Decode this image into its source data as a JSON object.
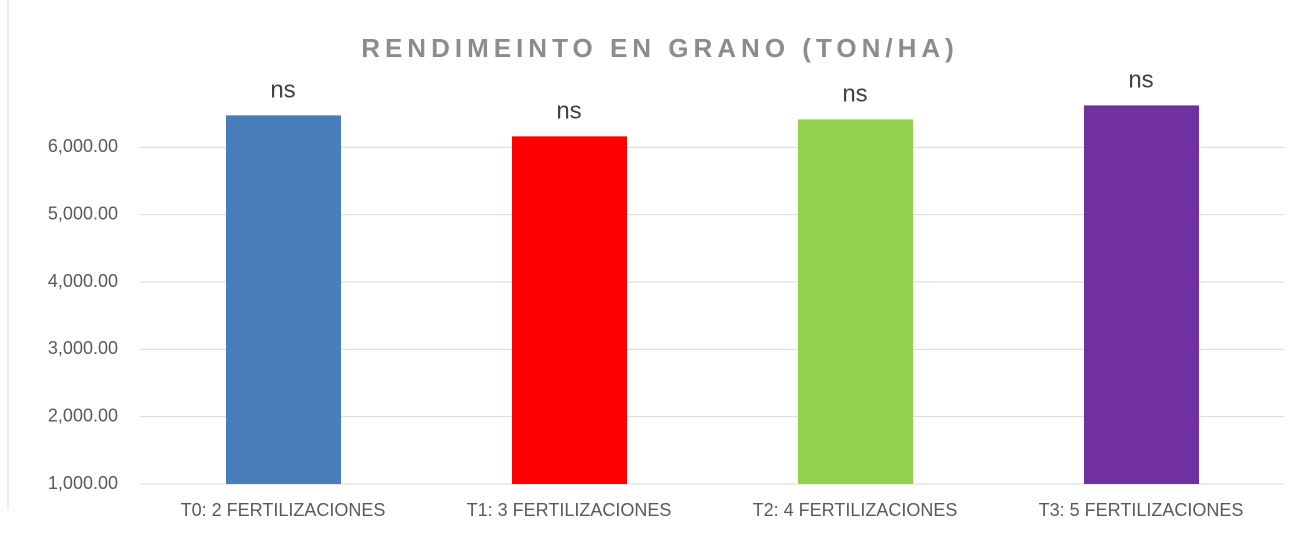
{
  "chart_data": {
    "type": "bar",
    "title": "RENDIMEINTO EN GRANO (TON/HA)",
    "categories": [
      "T0: 2 FERTILIZACIONES",
      "T1: 3 FERTILIZACIONES",
      "T2: 4 FERTILIZACIONES",
      "T3: 5 FERTILIZACIONES"
    ],
    "values": [
      6475,
      6163,
      6415,
      6623
    ],
    "annotations": [
      "ns",
      "ns",
      "ns",
      "ns"
    ],
    "colors": [
      "#4a7ebb",
      "#ff0000",
      "#92d050",
      "#7030a0"
    ],
    "ylim": [
      1000,
      7000
    ],
    "yticks": [
      {
        "value": 1000,
        "label": "1,000.00"
      },
      {
        "value": 2000,
        "label": "2,000.00"
      },
      {
        "value": 3000,
        "label": "3,000.00"
      },
      {
        "value": 4000,
        "label": "4,000.00"
      },
      {
        "value": 5000,
        "label": "5,000.00"
      },
      {
        "value": 6000,
        "label": "6,000.00"
      }
    ],
    "grid": true
  }
}
